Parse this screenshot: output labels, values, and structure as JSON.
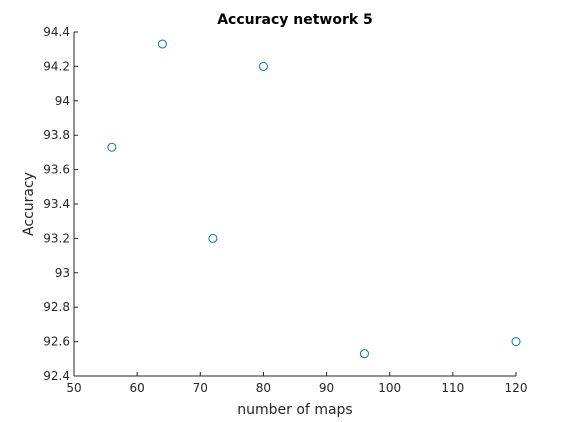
{
  "chart_data": {
    "type": "scatter",
    "title": "Accuracy network 5",
    "xlabel": "number of maps",
    "ylabel": "Accuracy",
    "xlim": [
      50,
      120
    ],
    "ylim": [
      92.4,
      94.4
    ],
    "x_ticks": [
      "50",
      "60",
      "70",
      "80",
      "90",
      "100",
      "110",
      "120"
    ],
    "y_ticks": [
      "92.4",
      "92.6",
      "92.8",
      "93",
      "93.2",
      "93.4",
      "93.6",
      "93.8",
      "94",
      "94.2",
      "94.4"
    ],
    "grid": false,
    "marker": "circle",
    "colors": {
      "series": "#0072BD",
      "axis": "#262626"
    },
    "series": [
      {
        "x": [
          56,
          64,
          72,
          80,
          96,
          120
        ],
        "y": [
          93.73,
          94.33,
          93.2,
          94.2,
          92.53,
          92.6
        ]
      }
    ]
  }
}
